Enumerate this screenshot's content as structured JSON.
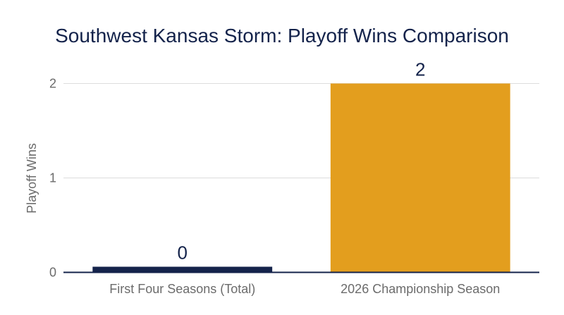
{
  "chart_data": {
    "type": "bar",
    "title": "Southwest Kansas Storm: Playoff Wins Comparison",
    "xlabel": "",
    "ylabel": "Playoff Wins",
    "categories": [
      "First Four Seasons (Total)",
      "2026 Championship Season"
    ],
    "values": [
      0,
      2
    ],
    "data_labels": [
      "0",
      "2"
    ],
    "ylim": [
      0,
      2
    ],
    "yticks": [
      "0",
      "1",
      "2"
    ],
    "grid": true,
    "legend": "none",
    "colors": {
      "bars": [
        "#14234b",
        "#e39e1e"
      ],
      "text": "#14234b",
      "axis": "#14234b",
      "grid": "#dddddd",
      "tick_text": "#6b6b6b"
    }
  }
}
